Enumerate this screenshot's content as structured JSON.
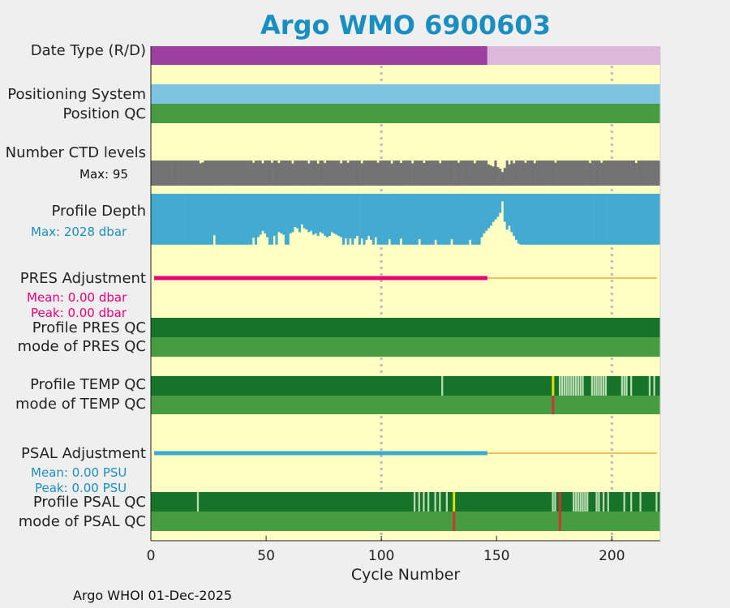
{
  "title": "Argo WMO 6900603",
  "credit": "Argo WHOI 01-Dec-2025",
  "colors": {
    "panel_bg": "#ffffc4",
    "rd_real": "#9c3fa0",
    "rd_delayed": "#dcb8dc",
    "positioning": "#7ec3df",
    "qc_mode": "#479c42",
    "qc_good": "#177329",
    "qc_light": "#b8dcb0",
    "qc_flag_yellow": "#e4e400",
    "qc_flag_red": "#d83030",
    "ctd_levels": "#737373",
    "profile_depth": "#43aad0",
    "pres_adj": "#e8007a",
    "psal_adj": "#3aa8d0",
    "adj_future": "#f0c060",
    "grid": "#bbbbbb"
  },
  "labels": {
    "date_type": "Date Type (R/D)",
    "positioning": "Positioning System",
    "position_qc": "Position QC",
    "ctd_levels": "Number CTD levels",
    "ctd_max": "Max: 95",
    "profile_depth": "Profile Depth",
    "depth_max": "Max: 2028 dbar",
    "pres_adj": "PRES Adjustment",
    "pres_mean": "Mean: 0.00 dbar",
    "pres_peak": "Peak: 0.00 dbar",
    "profile_pres_qc": "Profile PRES QC",
    "mode_pres_qc": "mode of PRES QC",
    "profile_temp_qc": "Profile TEMP QC",
    "mode_temp_qc": "mode of TEMP QC",
    "psal_adj": "PSAL Adjustment",
    "psal_mean": "Mean: 0.00 PSU",
    "psal_peak": "Peak: 0.00 PSU",
    "profile_psal_qc": "Profile PSAL QC",
    "mode_psal_qc": "mode of PSAL QC"
  },
  "chart_data": {
    "type": "bar",
    "xlabel": "Cycle Number",
    "xlim": [
      0,
      221
    ],
    "xticks": [
      0,
      50,
      100,
      150,
      200
    ],
    "grid_x": [
      100,
      200
    ],
    "date_type_delayed_until": 146,
    "adjustment_until": 146,
    "ctd_levels": {
      "max": 95,
      "typical": 92,
      "dips": [
        [
          21,
          82
        ],
        [
          22,
          85
        ],
        [
          44,
          84
        ],
        [
          48,
          82
        ],
        [
          52,
          84
        ],
        [
          55,
          83
        ],
        [
          61,
          81
        ],
        [
          68,
          82
        ],
        [
          72,
          81
        ],
        [
          75,
          83
        ],
        [
          82,
          82
        ],
        [
          85,
          84
        ],
        [
          91,
          82
        ],
        [
          98,
          84
        ],
        [
          104,
          81
        ],
        [
          108,
          83
        ],
        [
          113,
          82
        ],
        [
          118,
          83
        ],
        [
          125,
          82
        ],
        [
          133,
          84
        ],
        [
          140,
          82
        ],
        [
          146,
          78
        ],
        [
          147,
          74
        ],
        [
          148,
          70
        ],
        [
          150,
          68
        ],
        [
          151,
          62
        ],
        [
          152,
          50
        ],
        [
          153,
          65
        ],
        [
          155,
          78
        ],
        [
          157,
          82
        ],
        [
          162,
          84
        ],
        [
          166,
          82
        ],
        [
          175,
          84
        ],
        [
          190,
          83
        ],
        [
          195,
          84
        ],
        [
          210,
          83
        ]
      ]
    },
    "profile_depth": {
      "max": 2028,
      "typical": 1990,
      "dips": [
        [
          27,
          1620
        ],
        [
          44,
          1720
        ],
        [
          46,
          1700
        ],
        [
          47,
          1600
        ],
        [
          48,
          1450
        ],
        [
          49,
          1550
        ],
        [
          50,
          1700
        ],
        [
          53,
          1650
        ],
        [
          55,
          1500
        ],
        [
          56,
          1550
        ],
        [
          57,
          1600
        ],
        [
          60,
          1550
        ],
        [
          61,
          1500
        ],
        [
          62,
          1300
        ],
        [
          63,
          1350
        ],
        [
          64,
          1500
        ],
        [
          65,
          1200
        ],
        [
          66,
          1350
        ],
        [
          67,
          1400
        ],
        [
          68,
          1500
        ],
        [
          69,
          1450
        ],
        [
          70,
          1600
        ],
        [
          71,
          1550
        ],
        [
          72,
          1650
        ],
        [
          73,
          1500
        ],
        [
          74,
          1550
        ],
        [
          75,
          1650
        ],
        [
          76,
          1700
        ],
        [
          77,
          1650
        ],
        [
          78,
          1500
        ],
        [
          79,
          1550
        ],
        [
          80,
          1600
        ],
        [
          81,
          1650
        ],
        [
          82,
          1700
        ],
        [
          84,
          1750
        ],
        [
          86,
          1750
        ],
        [
          88,
          1750
        ],
        [
          89,
          1650
        ],
        [
          91,
          1750
        ],
        [
          93,
          1800
        ],
        [
          94,
          1650
        ],
        [
          95,
          1800
        ],
        [
          97,
          1700
        ],
        [
          103,
          1780
        ],
        [
          108,
          1750
        ],
        [
          116,
          1780
        ],
        [
          123,
          1800
        ],
        [
          130,
          1780
        ],
        [
          138,
          1800
        ],
        [
          143,
          1700
        ],
        [
          144,
          1550
        ],
        [
          145,
          1450
        ],
        [
          146,
          1350
        ],
        [
          147,
          1250
        ],
        [
          148,
          1100
        ],
        [
          149,
          1000
        ],
        [
          150,
          900
        ],
        [
          151,
          750
        ],
        [
          152,
          300
        ],
        [
          153,
          1100
        ],
        [
          154,
          1400
        ],
        [
          155,
          1250
        ],
        [
          156,
          1500
        ],
        [
          157,
          1650
        ],
        [
          158,
          1800
        ],
        [
          159,
          1950
        ]
      ]
    },
    "temp_qc": {
      "light_cycles": [
        126,
        177,
        178,
        179,
        180,
        181,
        182,
        183,
        184,
        185,
        186,
        187,
        191,
        192,
        193,
        194,
        195,
        196,
        197,
        204,
        205,
        206,
        208,
        216,
        218
      ],
      "yellow_cycles": [
        174
      ],
      "mode_red_cycles": [
        174
      ]
    },
    "psal_qc": {
      "light_cycles": [
        20,
        114,
        116,
        118,
        120,
        123,
        125,
        128,
        174,
        175,
        183,
        184,
        185,
        186,
        187,
        188,
        189,
        193,
        194,
        196,
        198,
        205,
        208,
        212,
        219
      ],
      "yellow_cycles": [
        131
      ],
      "red_cycles": [
        177
      ],
      "mode_red_cycles": [
        131,
        177
      ]
    }
  }
}
